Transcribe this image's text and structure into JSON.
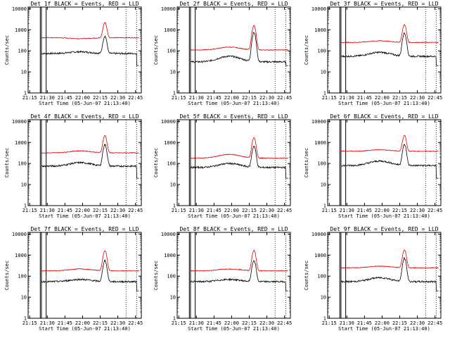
{
  "chart_data": [
    {
      "type": "line",
      "title": "Det_1f BLACK = Events, RED = LLD",
      "xlabel": "Start Time (05-Jun-07 21:13:40)",
      "ylabel": "Counts/sec",
      "x_ticks": [
        "21:15",
        "21:30",
        "21:45",
        "22:00",
        "22:15",
        "22:30",
        "22:45"
      ],
      "y_ticks": [
        "1",
        "10",
        "100",
        "1000",
        "10000"
      ],
      "y_scale": "log",
      "ylim": [
        1,
        12000
      ],
      "series": [
        {
          "name": "Events",
          "color": "#000000",
          "base": 75,
          "dip": 5,
          "hump": 90,
          "peak": 420
        },
        {
          "name": "LLD",
          "color": "#e00000",
          "base": 420,
          "dip": 0,
          "hump": 380,
          "peak": 1800
        }
      ],
      "vlines": [
        "21:24",
        "21:25",
        "21:29",
        "22:37",
        "22:46"
      ]
    },
    {
      "type": "line",
      "title": "Det_2f BLACK = Events, RED = LLD",
      "xlabel": "Start Time (05-Jun-07 21:13:40)",
      "ylabel": "Counts/sec",
      "x_ticks": [
        "21:15",
        "21:30",
        "21:45",
        "22:00",
        "22:15",
        "22:30",
        "22:45"
      ],
      "y_ticks": [
        "1",
        "10",
        "100",
        "1000",
        "10000"
      ],
      "y_scale": "log",
      "ylim": [
        1,
        12000
      ],
      "series": [
        {
          "name": "Events",
          "color": "#000000",
          "base": 30,
          "dip": 5,
          "hump": 55,
          "peak": 700
        },
        {
          "name": "LLD",
          "color": "#e00000",
          "base": 110,
          "dip": 0,
          "hump": 150,
          "peak": 1500
        }
      ],
      "vlines": [
        "21:24",
        "21:25",
        "21:29",
        "22:37",
        "22:46"
      ]
    },
    {
      "type": "line",
      "title": "Det_3f BLACK = Events, RED = LLD",
      "xlabel": "Start Time (05-Jun-07 21:13:40)",
      "ylabel": "Counts/sec",
      "x_ticks": [
        "21:15",
        "21:30",
        "21:45",
        "22:00",
        "22:15",
        "22:30",
        "22:45"
      ],
      "y_ticks": [
        "1",
        "10",
        "100",
        "1000",
        "10000"
      ],
      "y_scale": "log",
      "ylim": [
        1,
        12000
      ],
      "series": [
        {
          "name": "Events",
          "color": "#000000",
          "base": 55,
          "dip": 5,
          "hump": 85,
          "peak": 650
        },
        {
          "name": "LLD",
          "color": "#e00000",
          "base": 250,
          "dip": 0,
          "hump": 300,
          "peak": 1500
        }
      ],
      "vlines": [
        "21:24",
        "21:25",
        "21:29",
        "22:37",
        "22:46"
      ]
    },
    {
      "type": "line",
      "title": "Det_4f BLACK = Events, RED = LLD",
      "xlabel": "Start Time (05-Jun-07 21:13:40)",
      "ylabel": "Counts/sec",
      "x_ticks": [
        "21:15",
        "21:30",
        "21:45",
        "22:00",
        "22:15",
        "22:30",
        "22:45"
      ],
      "y_ticks": [
        "1",
        "10",
        "100",
        "1000",
        "10000"
      ],
      "y_scale": "log",
      "ylim": [
        1,
        12000
      ],
      "series": [
        {
          "name": "Events",
          "color": "#000000",
          "base": 75,
          "dip": 5,
          "hump": 110,
          "peak": 700
        },
        {
          "name": "LLD",
          "color": "#e00000",
          "base": 320,
          "dip": 0,
          "hump": 400,
          "peak": 1800
        }
      ],
      "vlines": [
        "21:24",
        "21:25",
        "21:29",
        "22:37",
        "22:46"
      ]
    },
    {
      "type": "line",
      "title": "Det_5f BLACK = Events, RED = LLD",
      "xlabel": "Start Time (05-Jun-07 21:13:40)",
      "ylabel": "Counts/sec",
      "x_ticks": [
        "21:15",
        "21:30",
        "21:45",
        "22:00",
        "22:15",
        "22:30",
        "22:45"
      ],
      "y_ticks": [
        "1",
        "10",
        "100",
        "1000",
        "10000"
      ],
      "y_scale": "log",
      "ylim": [
        1,
        12000
      ],
      "series": [
        {
          "name": "Events",
          "color": "#000000",
          "base": 65,
          "dip": 5,
          "hump": 100,
          "peak": 600
        },
        {
          "name": "LLD",
          "color": "#e00000",
          "base": 180,
          "dip": 0,
          "hump": 270,
          "peak": 1500
        }
      ],
      "vlines": [
        "21:24",
        "21:25",
        "21:29",
        "22:37",
        "22:46"
      ]
    },
    {
      "type": "line",
      "title": "Det_6f BLACK = Events, RED = LLD",
      "xlabel": "Start Time (05-Jun-07 21:13:40)",
      "ylabel": "Counts/sec",
      "x_ticks": [
        "21:15",
        "21:30",
        "21:45",
        "22:00",
        "22:15",
        "22:30",
        "22:45"
      ],
      "y_ticks": [
        "1",
        "10",
        "100",
        "1000",
        "10000"
      ],
      "y_scale": "log",
      "ylim": [
        1,
        12000
      ],
      "series": [
        {
          "name": "Events",
          "color": "#000000",
          "base": 80,
          "dip": 5,
          "hump": 130,
          "peak": 700
        },
        {
          "name": "LLD",
          "color": "#e00000",
          "base": 380,
          "dip": 0,
          "hump": 450,
          "peak": 1800
        }
      ],
      "vlines": [
        "21:24",
        "21:25",
        "21:29",
        "22:37",
        "22:46"
      ]
    },
    {
      "type": "line",
      "title": "Det_7f BLACK = Events, RED = LLD",
      "xlabel": "Start Time (05-Jun-07 21:13:40)",
      "ylabel": "Counts/sec",
      "x_ticks": [
        "21:15",
        "21:30",
        "21:45",
        "22:00",
        "22:15",
        "22:30",
        "22:45"
      ],
      "y_ticks": [
        "1",
        "10",
        "100",
        "1000",
        "10000"
      ],
      "y_scale": "log",
      "ylim": [
        1,
        12000
      ],
      "series": [
        {
          "name": "Events",
          "color": "#000000",
          "base": 55,
          "dip": 5,
          "hump": 70,
          "peak": 500
        },
        {
          "name": "LLD",
          "color": "#e00000",
          "base": 180,
          "dip": 0,
          "hump": 220,
          "peak": 1500
        }
      ],
      "vlines": [
        "21:24",
        "21:25",
        "21:29",
        "22:37",
        "22:46"
      ]
    },
    {
      "type": "line",
      "title": "Det_8f BLACK = Events, RED = LLD",
      "xlabel": "Start Time (05-Jun-07 21:13:40)",
      "ylabel": "Counts/sec",
      "x_ticks": [
        "21:15",
        "21:30",
        "21:45",
        "22:00",
        "22:15",
        "22:30",
        "22:45"
      ],
      "y_ticks": [
        "1",
        "10",
        "100",
        "1000",
        "10000"
      ],
      "y_scale": "log",
      "ylim": [
        1,
        12000
      ],
      "series": [
        {
          "name": "Events",
          "color": "#000000",
          "base": 55,
          "dip": 5,
          "hump": 70,
          "peak": 500
        },
        {
          "name": "LLD",
          "color": "#e00000",
          "base": 180,
          "dip": 0,
          "hump": 220,
          "peak": 1500
        }
      ],
      "vlines": [
        "21:24",
        "21:25",
        "21:29",
        "22:37",
        "22:46"
      ]
    },
    {
      "type": "line",
      "title": "Det_9f BLACK = Events, RED = LLD",
      "xlabel": "Start Time (05-Jun-07 21:13:40)",
      "ylabel": "Counts/sec",
      "x_ticks": [
        "21:15",
        "21:30",
        "21:45",
        "22:00",
        "22:15",
        "22:30",
        "22:45"
      ],
      "y_ticks": [
        "1",
        "10",
        "100",
        "1000",
        "10000"
      ],
      "y_scale": "log",
      "ylim": [
        1,
        12000
      ],
      "series": [
        {
          "name": "Events",
          "color": "#000000",
          "base": 55,
          "dip": 5,
          "hump": 85,
          "peak": 650
        },
        {
          "name": "LLD",
          "color": "#e00000",
          "base": 250,
          "dip": 0,
          "hump": 300,
          "peak": 1500
        }
      ],
      "vlines": [
        "21:24",
        "21:25",
        "21:29",
        "22:37",
        "22:46"
      ]
    }
  ]
}
